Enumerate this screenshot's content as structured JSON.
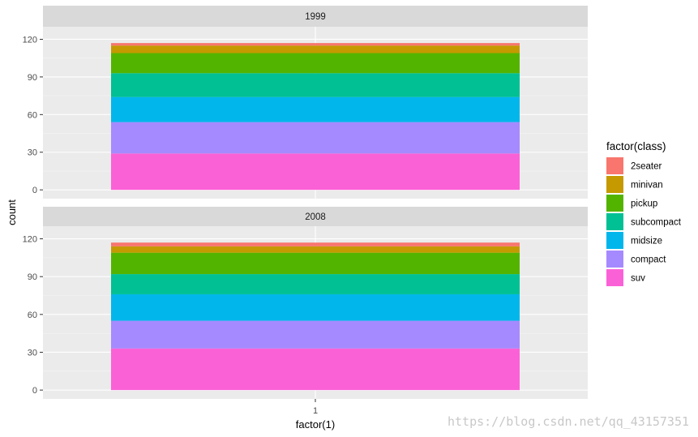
{
  "chart_data": {
    "type": "bar",
    "stacked": true,
    "faceted_by": "year",
    "facets": [
      {
        "label": "1999",
        "category": "1",
        "segments": [
          {
            "name": "suv",
            "value": 29
          },
          {
            "name": "compact",
            "value": 25
          },
          {
            "name": "midsize",
            "value": 20
          },
          {
            "name": "subcompact",
            "value": 19
          },
          {
            "name": "pickup",
            "value": 16
          },
          {
            "name": "minivan",
            "value": 6
          },
          {
            "name": "2seater",
            "value": 2
          }
        ]
      },
      {
        "label": "2008",
        "category": "1",
        "segments": [
          {
            "name": "suv",
            "value": 33
          },
          {
            "name": "compact",
            "value": 22
          },
          {
            "name": "midsize",
            "value": 21
          },
          {
            "name": "subcompact",
            "value": 16
          },
          {
            "name": "pickup",
            "value": 17
          },
          {
            "name": "minivan",
            "value": 5
          },
          {
            "name": "2seater",
            "value": 3
          }
        ]
      }
    ],
    "xlabel": "factor(1)",
    "ylabel": "count",
    "x_tick_labels": [
      "1"
    ],
    "y_ticks": [
      0,
      30,
      60,
      90,
      120
    ],
    "ylim": [
      -7,
      130
    ],
    "grid": true,
    "legend": {
      "title": "factor(class)",
      "position": "right",
      "entries": [
        {
          "name": "2seater",
          "color": "#F8766D"
        },
        {
          "name": "minivan",
          "color": "#C49A00"
        },
        {
          "name": "pickup",
          "color": "#53B400"
        },
        {
          "name": "subcompact",
          "color": "#00C094"
        },
        {
          "name": "midsize",
          "color": "#00B6EB"
        },
        {
          "name": "compact",
          "color": "#A58AFF"
        },
        {
          "name": "suv",
          "color": "#FB61D7"
        }
      ]
    },
    "watermark": "https://blog.csdn.net/qq_43157351"
  }
}
